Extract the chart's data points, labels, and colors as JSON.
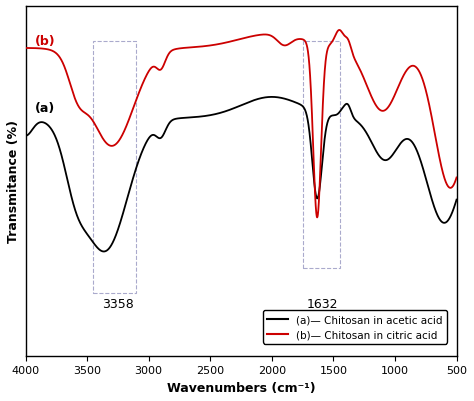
{
  "xlabel": "Wavenumbers (cm⁻¹)",
  "ylabel": "Transmitance (%)",
  "label_a": "(a)",
  "label_b": "(b)",
  "annot_3358": "3358",
  "annot_1632": "1632",
  "color_a": "#000000",
  "color_b": "#cc0000",
  "legend_a": "(a)— Chitosan in acetic acid",
  "legend_b": "(b)— Chitosan in citric acid"
}
